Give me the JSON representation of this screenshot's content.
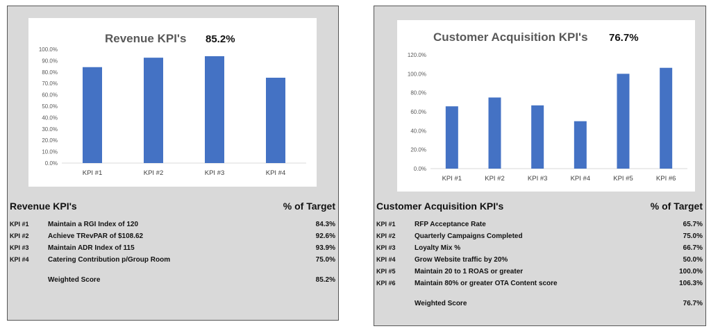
{
  "chart_data": [
    {
      "type": "bar",
      "title": "Revenue KPI's",
      "headline_value": "85.2%",
      "categories": [
        "KPI #1",
        "KPI #2",
        "KPI #3",
        "KPI #4"
      ],
      "values": [
        84.3,
        92.6,
        93.9,
        75.0
      ],
      "ylim": [
        0,
        100
      ],
      "yticks": [
        "0.0%",
        "10.0%",
        "20.0%",
        "30.0%",
        "40.0%",
        "50.0%",
        "60.0%",
        "70.0%",
        "80.0%",
        "90.0%",
        "100.0%"
      ],
      "color": "#4472c4",
      "grid": false
    },
    {
      "type": "bar",
      "title": "Customer Acquisition KPI's",
      "headline_value": "76.7%",
      "categories": [
        "KPI #1",
        "KPI #2",
        "KPI #3",
        "KPI #4",
        "KPI #5",
        "KPI #6"
      ],
      "values": [
        65.7,
        75.0,
        66.7,
        50.0,
        100.0,
        106.3
      ],
      "ylim": [
        0,
        120
      ],
      "yticks": [
        "0.0%",
        "20.0%",
        "40.0%",
        "60.0%",
        "80.0%",
        "100.0%",
        "120.0%"
      ],
      "color": "#4472c4",
      "grid": false
    }
  ],
  "tables": [
    {
      "title": "Revenue KPI's",
      "col_header": "% of Target",
      "rows": [
        {
          "id": "KPI #1",
          "desc": "Maintain a RGI Index of 120",
          "pct": "84.3%"
        },
        {
          "id": "KPI #2",
          "desc": "Achieve TRevPAR of $108.62",
          "pct": "92.6%"
        },
        {
          "id": "KPI #3",
          "desc": "Maintain ADR Index of 115",
          "pct": "93.9%"
        },
        {
          "id": "KPI #4",
          "desc": "Catering Contribution p/Group Room",
          "pct": "75.0%"
        }
      ],
      "weighted_label": "Weighted Score",
      "weighted_value": "85.2%"
    },
    {
      "title": "Customer Acquisition KPI's",
      "col_header": "% of Target",
      "rows": [
        {
          "id": "KPI #1",
          "desc": "RFP Acceptance Rate",
          "pct": "65.7%"
        },
        {
          "id": "KPI #2",
          "desc": "Quarterly Campaigns Completed",
          "pct": "75.0%"
        },
        {
          "id": "KPI #3",
          "desc": "Loyalty Mix %",
          "pct": "66.7%"
        },
        {
          "id": "KPI #4",
          "desc": "Grow Website traffic by 20%",
          "pct": "50.0%"
        },
        {
          "id": "KPI #5",
          "desc": "Maintain 20 to 1 ROAS or greater",
          "pct": "100.0%"
        },
        {
          "id": "KPI #6",
          "desc": "Maintain 80% or greater OTA Content score",
          "pct": "106.3%"
        }
      ],
      "weighted_label": "Weighted Score",
      "weighted_value": "76.7%"
    }
  ]
}
